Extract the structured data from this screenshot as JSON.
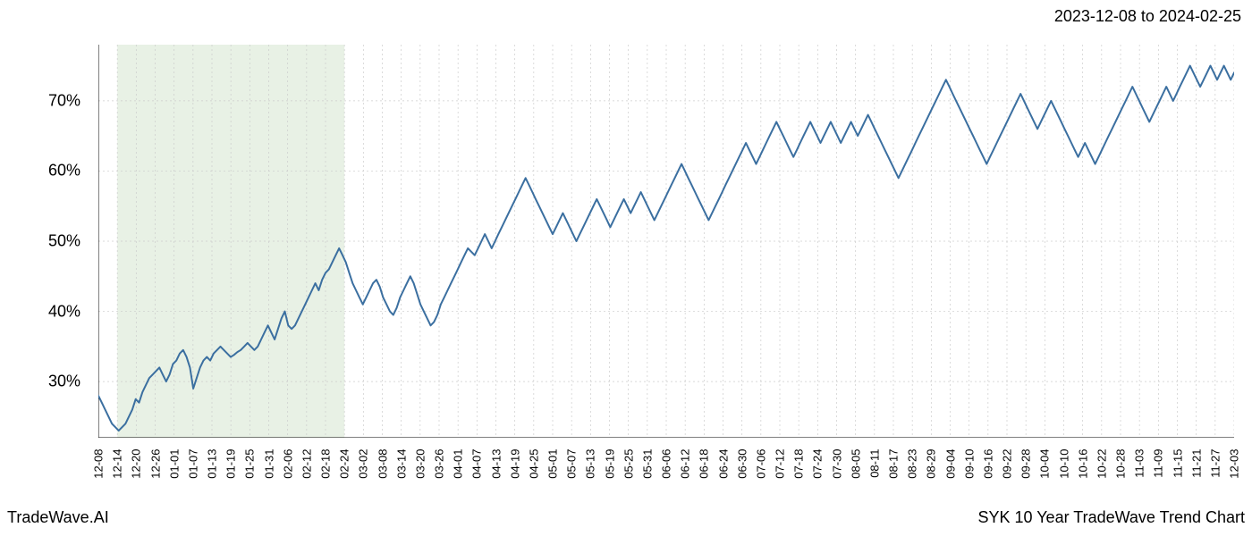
{
  "header": {
    "date_range": "2023-12-08 to 2024-02-25"
  },
  "footer": {
    "brand": "TradeWave.AI",
    "chart_title": "SYK 10 Year TradeWave Trend Chart"
  },
  "chart": {
    "type": "line",
    "background_color": "#ffffff",
    "line_color": "#3b6fa0",
    "line_width": 2,
    "grid_color": "#cccccc",
    "grid_dash": "2,3",
    "axis_color": "#000000",
    "highlight_band": {
      "fill": "#d9e8d4",
      "opacity": 0.6,
      "x_start": "12-14",
      "x_end": "02-24"
    },
    "y_axis": {
      "min": 22,
      "max": 78,
      "ticks": [
        30,
        40,
        50,
        60,
        70
      ],
      "tick_labels": [
        "30%",
        "40%",
        "50%",
        "60%",
        "70%"
      ],
      "label_fontsize": 18
    },
    "x_axis": {
      "labels": [
        "12-08",
        "12-14",
        "12-20",
        "12-26",
        "01-01",
        "01-07",
        "01-13",
        "01-19",
        "01-25",
        "01-31",
        "02-06",
        "02-12",
        "02-18",
        "02-24",
        "03-02",
        "03-08",
        "03-14",
        "03-20",
        "03-26",
        "04-01",
        "04-07",
        "04-13",
        "04-19",
        "04-25",
        "05-01",
        "05-07",
        "05-13",
        "05-19",
        "05-25",
        "05-31",
        "06-06",
        "06-12",
        "06-18",
        "06-24",
        "06-30",
        "07-06",
        "07-12",
        "07-18",
        "07-24",
        "07-30",
        "08-05",
        "08-11",
        "08-17",
        "08-23",
        "08-29",
        "09-04",
        "09-10",
        "09-16",
        "09-22",
        "09-28",
        "10-04",
        "10-10",
        "10-16",
        "10-22",
        "10-28",
        "11-03",
        "11-09",
        "11-15",
        "11-21",
        "11-27",
        "12-03"
      ],
      "label_fontsize": 13,
      "rotation": -90
    },
    "series": {
      "values": [
        28,
        27,
        26,
        25,
        24,
        23.5,
        23,
        23.5,
        24,
        25,
        26,
        27.5,
        27,
        28.5,
        29.5,
        30.5,
        31,
        31.5,
        32,
        31,
        30,
        31,
        32.5,
        33,
        34,
        34.5,
        33.5,
        32,
        29,
        30.5,
        32,
        33,
        33.5,
        33,
        34,
        34.5,
        35,
        34.5,
        34,
        33.5,
        33.8,
        34.2,
        34.5,
        35,
        35.5,
        35,
        34.5,
        35,
        36,
        37,
        38,
        37,
        36,
        37.5,
        39,
        40,
        38,
        37.5,
        38,
        39,
        40,
        41,
        42,
        43,
        44,
        43,
        44.5,
        45.5,
        46,
        47,
        48,
        49,
        48,
        47,
        45.5,
        44,
        43,
        42,
        41,
        42,
        43,
        44,
        44.5,
        43.5,
        42,
        41,
        40,
        39.5,
        40.5,
        42,
        43,
        44,
        45,
        44,
        42.5,
        41,
        40,
        39,
        38,
        38.5,
        39.5,
        41,
        42,
        43,
        44,
        45,
        46,
        47,
        48,
        49,
        48.5,
        48,
        49,
        50,
        51,
        50,
        49,
        50,
        51,
        52,
        53,
        54,
        55,
        56,
        57,
        58,
        59,
        58,
        57,
        56,
        55,
        54,
        53,
        52,
        51,
        52,
        53,
        54,
        53,
        52,
        51,
        50,
        51,
        52,
        53,
        54,
        55,
        56,
        55,
        54,
        53,
        52,
        53,
        54,
        55,
        56,
        55,
        54,
        55,
        56,
        57,
        56,
        55,
        54,
        53,
        54,
        55,
        56,
        57,
        58,
        59,
        60,
        61,
        60,
        59,
        58,
        57,
        56,
        55,
        54,
        53,
        54,
        55,
        56,
        57,
        58,
        59,
        60,
        61,
        62,
        63,
        64,
        63,
        62,
        61,
        62,
        63,
        64,
        65,
        66,
        67,
        66,
        65,
        64,
        63,
        62,
        63,
        64,
        65,
        66,
        67,
        66,
        65,
        64,
        65,
        66,
        67,
        66,
        65,
        64,
        65,
        66,
        67,
        66,
        65,
        66,
        67,
        68,
        67,
        66,
        65,
        64,
        63,
        62,
        61,
        60,
        59,
        60,
        61,
        62,
        63,
        64,
        65,
        66,
        67,
        68,
        69,
        70,
        71,
        72,
        73,
        72,
        71,
        70,
        69,
        68,
        67,
        66,
        65,
        64,
        63,
        62,
        61,
        62,
        63,
        64,
        65,
        66,
        67,
        68,
        69,
        70,
        71,
        70,
        69,
        68,
        67,
        66,
        67,
        68,
        69,
        70,
        69,
        68,
        67,
        66,
        65,
        64,
        63,
        62,
        63,
        64,
        63,
        62,
        61,
        62,
        63,
        64,
        65,
        66,
        67,
        68,
        69,
        70,
        71,
        72,
        71,
        70,
        69,
        68,
        67,
        68,
        69,
        70,
        71,
        72,
        71,
        70,
        71,
        72,
        73,
        74,
        75,
        74,
        73,
        72,
        73,
        74,
        75,
        74,
        73,
        74,
        75,
        74,
        73,
        74
      ]
    }
  }
}
